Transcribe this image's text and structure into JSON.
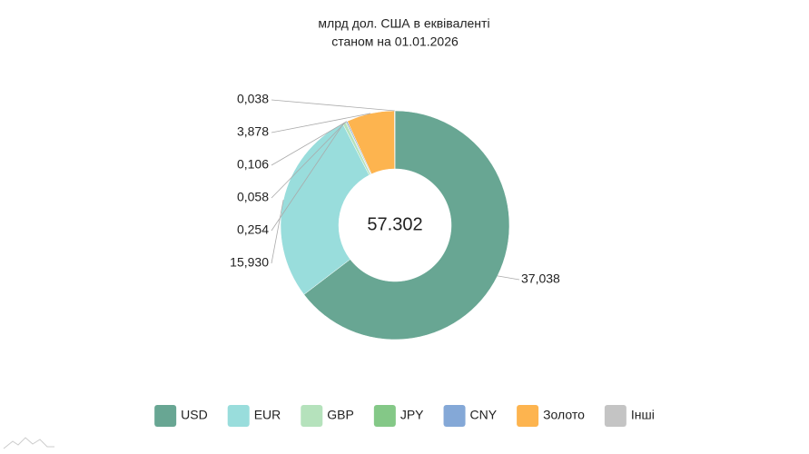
{
  "chart_data": {
    "type": "donut",
    "title": "млрд дол. США в еквіваленті",
    "subtitle": "станом на 01.01.2026",
    "total": 57.302,
    "categories": [
      "USD",
      "EUR",
      "GBP",
      "JPY",
      "CNY",
      "Золото",
      "Інші"
    ],
    "values": [
      37.038,
      15.93,
      0.254,
      0.058,
      0.106,
      3.878,
      0.038
    ],
    "value_labels": [
      "37,038",
      "15,930",
      "0,254",
      "0,058",
      "0,106",
      "3,878",
      "0,038"
    ],
    "colors": [
      "#68a693",
      "#99dddc",
      "#b5e2bc",
      "#84c887",
      "#84a8d7",
      "#fdb44f",
      "#c4c4c4"
    ],
    "legend": "bottom"
  }
}
